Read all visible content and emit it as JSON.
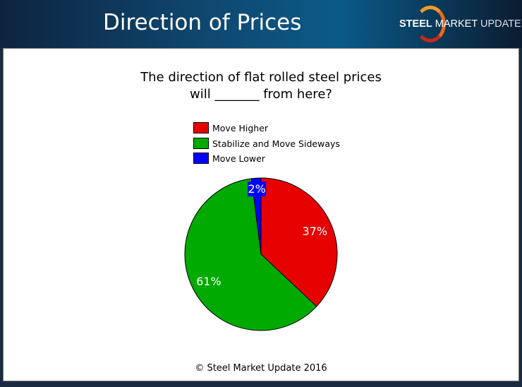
{
  "header": {
    "title": "Direction of Prices",
    "logo": {
      "bold": "STEEL",
      "mid": "MARKET",
      "light": "UPDATE"
    }
  },
  "chart_data": {
    "type": "pie",
    "title": "The direction of flat rolled steel prices will _______ from here?",
    "title_lines": [
      "The direction of flat rolled steel prices",
      "will _______ from here?"
    ],
    "legend_position": "top",
    "slices": [
      {
        "name": "Move Higher",
        "value": 37,
        "label": "37%",
        "color": "#e60000"
      },
      {
        "name": "Stabilize and Move Sideways",
        "value": 61,
        "label": "61%",
        "color": "#00aa00"
      },
      {
        "name": "Move Lower",
        "value": 2,
        "label": "2%",
        "color": "#0000ff"
      }
    ]
  },
  "footer": {
    "copyright": "© Steel Market Update 2016"
  }
}
